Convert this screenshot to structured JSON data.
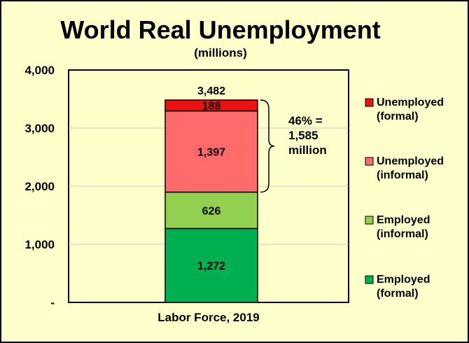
{
  "chart_data": {
    "type": "bar",
    "stacked": true,
    "title": "World Real Unemployment",
    "subtitle": "(millions)",
    "categories": [
      "Labor Force, 2019"
    ],
    "series": [
      {
        "name": "Employed (formal)",
        "values": [
          1272
        ],
        "color": "#00b050"
      },
      {
        "name": "Employed (informal)",
        "values": [
          626
        ],
        "color": "#92d050"
      },
      {
        "name": "Unemployed (informal)",
        "values": [
          1397
        ],
        "color": "#ff6b6b"
      },
      {
        "name": "Unemployed (formal)",
        "values": [
          188
        ],
        "color": "#ee1111"
      }
    ],
    "total_label": "3,482",
    "data_labels": [
      "1,272",
      "626",
      "1,397",
      "188"
    ],
    "ylim": [
      0,
      4000
    ],
    "yticks": [
      0,
      1000,
      2000,
      3000,
      4000
    ],
    "ytick_labels": [
      "-",
      "1,000",
      "2,000",
      "3,000",
      "4,000"
    ],
    "grid": true,
    "legend_position": "right",
    "legend": [
      {
        "line1": "Unemployed",
        "line2": "(formal)",
        "color": "#ee1111"
      },
      {
        "line1": "Unemployed",
        "line2": "(informal)",
        "color": "#ff6b6b"
      },
      {
        "line1": "Employed",
        "line2": "(informal)",
        "color": "#92d050"
      },
      {
        "line1": "Employed",
        "line2": "(formal)",
        "color": "#00b050"
      }
    ],
    "annotation": {
      "lines": [
        "46% =",
        "1,585",
        "million"
      ],
      "from": 1898,
      "to": 3483
    }
  }
}
